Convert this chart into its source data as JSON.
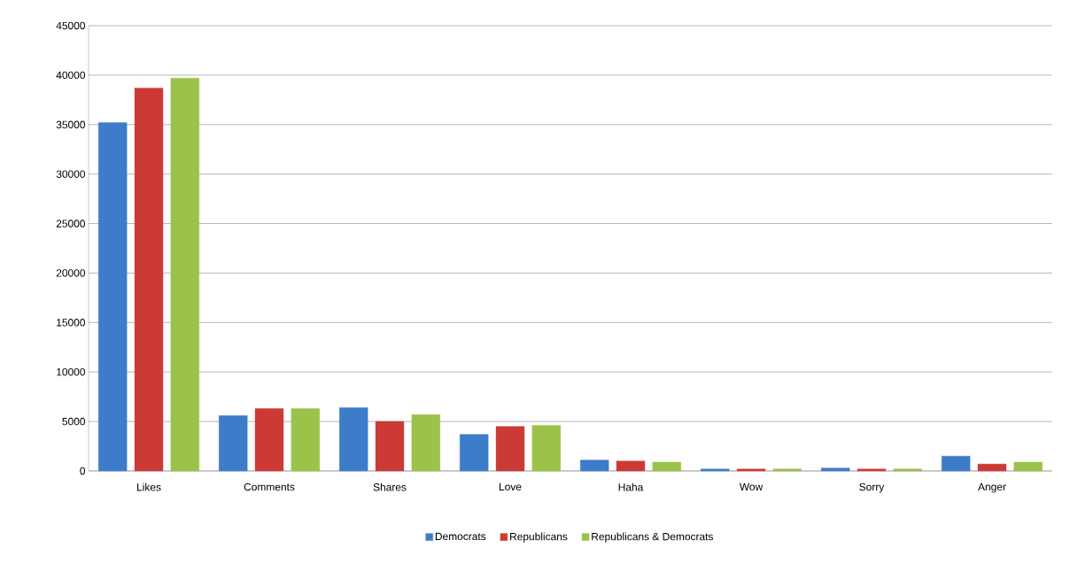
{
  "chart_data": {
    "type": "bar",
    "categories": [
      "Likes",
      "Comments",
      "Shares",
      "Love",
      "Haha",
      "Wow",
      "Sorry",
      "Anger"
    ],
    "series": [
      {
        "name": "Democrats",
        "color": "#3d7cc9",
        "values": [
          35200,
          5600,
          6400,
          3700,
          1100,
          200,
          300,
          1500
        ]
      },
      {
        "name": "Republicans",
        "color": "#cc3a36",
        "values": [
          38700,
          6300,
          5000,
          4500,
          1000,
          200,
          200,
          700
        ]
      },
      {
        "name": "Republicans & Democrats",
        "color": "#9bc34a",
        "values": [
          39700,
          6300,
          5700,
          4600,
          900,
          200,
          200,
          900
        ]
      }
    ],
    "ylim": [
      0,
      45000
    ],
    "yticks": [
      0,
      5000,
      10000,
      15000,
      20000,
      25000,
      30000,
      35000,
      40000,
      45000
    ],
    "grid": "y",
    "legend": "bottom"
  }
}
